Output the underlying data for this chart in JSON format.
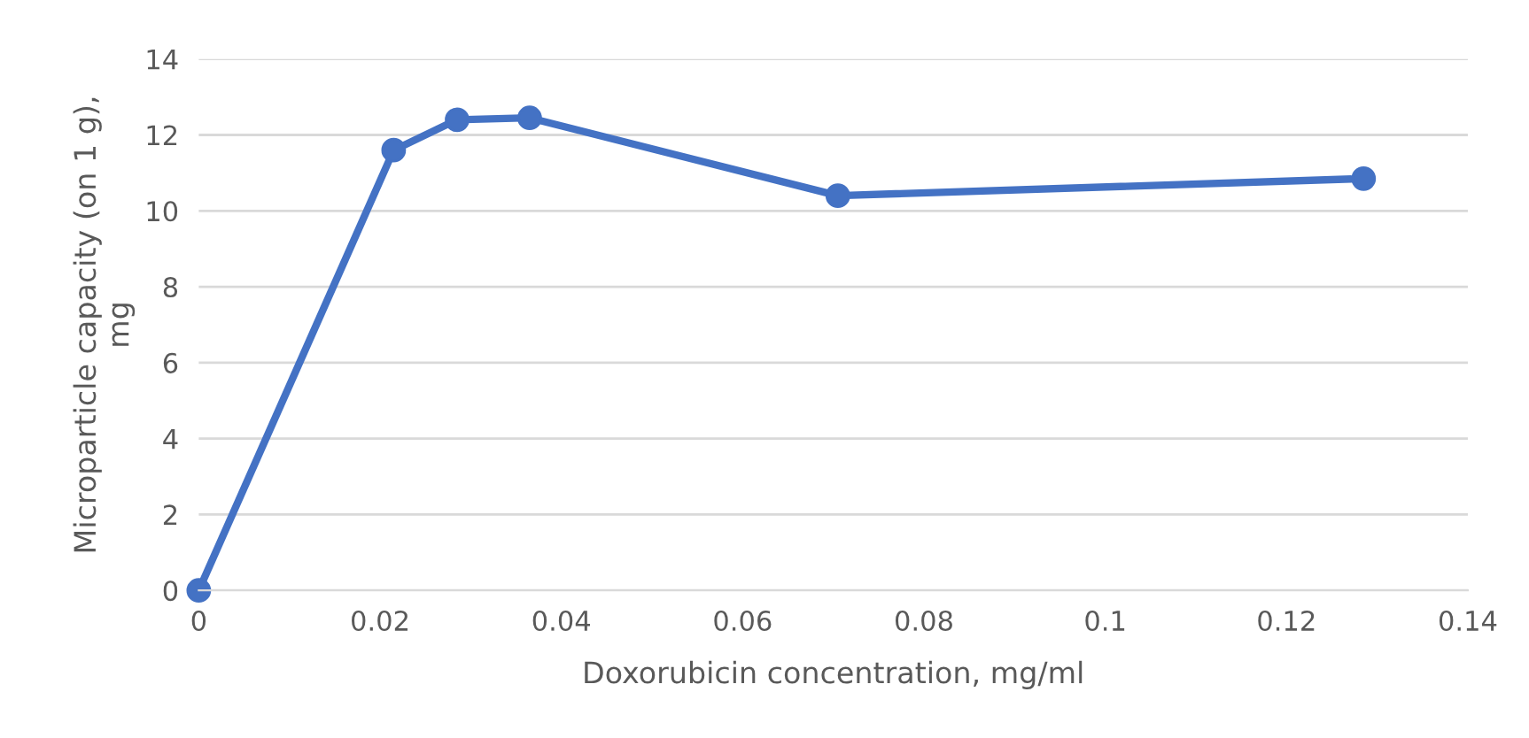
{
  "chart_data": {
    "type": "line",
    "xlabel": "Doxorubicin concentration, mg/ml",
    "ylabel": "Microparticle capacity (on 1 g),\nmg",
    "x": [
      0,
      0.0215,
      0.0285,
      0.0365,
      0.0705,
      0.1285
    ],
    "series": [
      {
        "color": "#4472c4",
        "values": [
          0,
          11.6,
          12.4,
          12.45,
          10.4,
          10.85
        ]
      }
    ],
    "xlim": [
      0,
      0.14
    ],
    "xticks": [
      0,
      0.02,
      0.04,
      0.06,
      0.08,
      {
        "value": 0.1,
        "label": "0.1"
      },
      0.12,
      0.14
    ],
    "ylim": [
      0,
      14
    ],
    "yticks": [
      0,
      2,
      4,
      6,
      8,
      10,
      12,
      14
    ],
    "grid": "y",
    "marker": "circle",
    "line_style": "solid",
    "legend": false
  }
}
